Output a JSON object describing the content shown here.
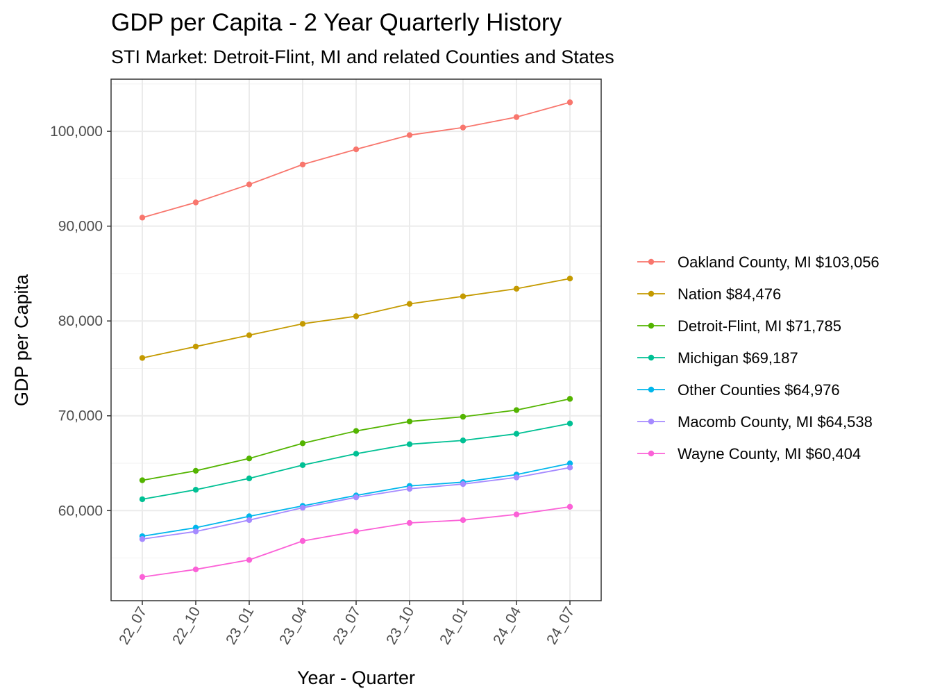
{
  "chart_data": {
    "type": "line",
    "title": "GDP per Capita - 2 Year Quarterly History",
    "subtitle": "STI Market: Detroit-Flint, MI and related Counties and States",
    "xlabel": "Year - Quarter",
    "ylabel": "GDP per Capita",
    "categories": [
      "22_07",
      "22_10",
      "23_01",
      "23_04",
      "23_07",
      "23_10",
      "24_01",
      "24_04",
      "24_07"
    ],
    "ylim": [
      50500,
      105500
    ],
    "y_ticks": [
      60000,
      70000,
      80000,
      90000,
      100000
    ],
    "y_tick_labels": [
      "60,000",
      "70,000",
      "80,000",
      "90,000",
      "100,000"
    ],
    "grid": true,
    "legend_position": "right",
    "series": [
      {
        "name": "Oakland County, MI $103,056",
        "color": "#F8766D",
        "values": [
          90900,
          92500,
          94400,
          96500,
          98100,
          99600,
          100400,
          101500,
          103056
        ]
      },
      {
        "name": "Nation $84,476",
        "color": "#C49A00",
        "values": [
          76100,
          77300,
          78500,
          79700,
          80500,
          81800,
          82600,
          83400,
          84476
        ]
      },
      {
        "name": "Detroit-Flint, MI $71,785",
        "color": "#53B400",
        "values": [
          63200,
          64200,
          65500,
          67100,
          68400,
          69400,
          69900,
          70600,
          71785
        ]
      },
      {
        "name": "Michigan $69,187",
        "color": "#00C094",
        "values": [
          61200,
          62200,
          63400,
          64800,
          66000,
          67000,
          67400,
          68100,
          69187
        ]
      },
      {
        "name": "Other Counties $64,976",
        "color": "#00B6EB",
        "values": [
          57300,
          58200,
          59400,
          60500,
          61600,
          62600,
          63000,
          63800,
          64976
        ]
      },
      {
        "name": "Macomb County, MI $64,538",
        "color": "#A58AFF",
        "values": [
          57000,
          57800,
          59000,
          60300,
          61400,
          62300,
          62800,
          63500,
          64538
        ]
      },
      {
        "name": "Wayne County, MI $60,404",
        "color": "#FB61D7",
        "values": [
          53000,
          53800,
          54800,
          56800,
          57800,
          58700,
          59000,
          59600,
          60404
        ]
      }
    ]
  }
}
